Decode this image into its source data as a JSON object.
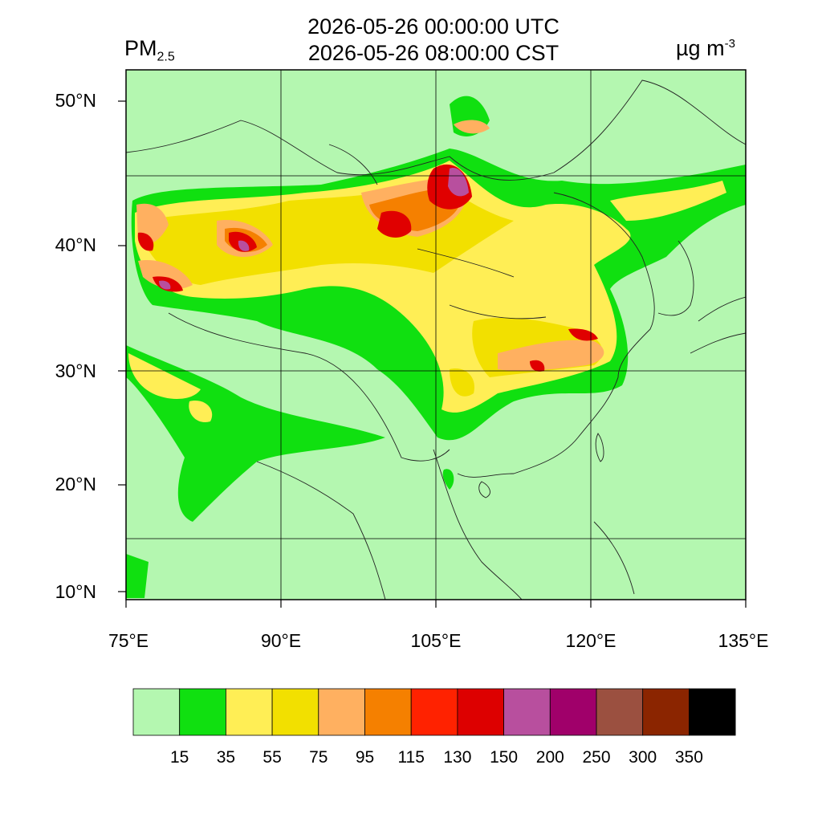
{
  "header": {
    "title_utc": "2026-05-26 00:00:00 UTC",
    "title_cst": "2026-05-26 08:00:00 CST",
    "variable": "PM",
    "variable_sub": "2.5",
    "unit": "µg m",
    "unit_sup": "-3"
  },
  "axes": {
    "lat_labels": [
      "50°N",
      "40°N",
      "30°N",
      "20°N",
      "10°N"
    ],
    "lon_labels": [
      "75°E",
      "90°E",
      "105°E",
      "120°E",
      "135°E"
    ]
  },
  "colorbar": {
    "thresholds": [
      "15",
      "35",
      "55",
      "75",
      "95",
      "115",
      "130",
      "150",
      "200",
      "250",
      "300",
      "350"
    ],
    "colors": [
      "#b4f7b0",
      "#10e010",
      "#ffee55",
      "#f2e000",
      "#ffb060",
      "#f58000",
      "#ff2200",
      "#dd0000",
      "#b84f9e",
      "#a0006a",
      "#9b5040",
      "#8b2500",
      "#000000"
    ]
  }
}
